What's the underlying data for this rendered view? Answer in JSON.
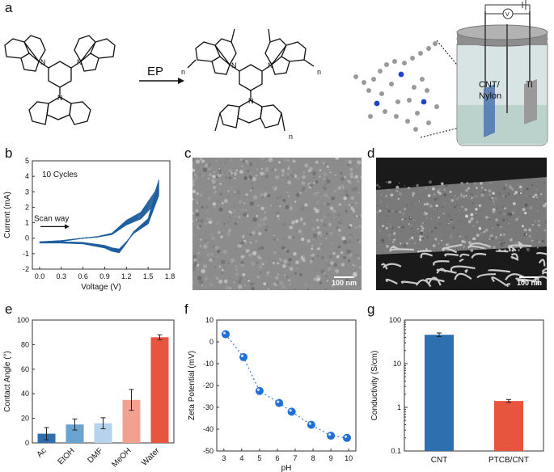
{
  "panels": {
    "a": "a",
    "b": "b",
    "c": "c",
    "d": "d",
    "e": "e",
    "f": "f",
    "g": "g"
  },
  "scheme": {
    "arrow_label": "EP",
    "cell_labels": [
      "CNT/",
      "Nylon",
      "Ti"
    ],
    "meter_label": "V",
    "repeat_n": "n"
  },
  "sem": {
    "c_scale": "100 nm",
    "d_scale": "100 nm"
  },
  "chart_data": [
    {
      "id": "b",
      "type": "line",
      "title": "",
      "annotation": "10 Cycles",
      "arrow_text": "Scan way",
      "xlabel": "Voltage (V)",
      "ylabel": "Current (mA)",
      "xlim": [
        -0.1,
        1.8
      ],
      "ylim": [
        -2,
        5
      ],
      "xticks": [
        "0.0",
        "0.3",
        "0.6",
        "0.9",
        "1.2",
        "1.5",
        "1.8"
      ],
      "yticks": [
        "-2",
        "-1",
        "0",
        "1",
        "2",
        "3",
        "4",
        "5"
      ],
      "cycles": 10,
      "color": "#1f5f9e",
      "series": [
        {
          "x": [
            0.0,
            0.3,
            0.6,
            0.8,
            1.0,
            1.2,
            1.4,
            1.6,
            1.65,
            1.5,
            1.3,
            1.2,
            1.1,
            1.0,
            0.9,
            0.6,
            0.3,
            0.0
          ],
          "y": [
            -0.3,
            -0.2,
            0.0,
            0.1,
            0.3,
            1.1,
            1.6,
            2.9,
            3.6,
            1.2,
            0.4,
            -0.3,
            -0.9,
            -0.8,
            -0.6,
            -0.35,
            -0.3,
            -0.3
          ]
        }
      ]
    },
    {
      "id": "e",
      "type": "bar",
      "title": "",
      "xlabel": "",
      "ylabel": "Contact Angle (°)",
      "ylim": [
        0,
        100
      ],
      "yticks": [
        "0",
        "20",
        "40",
        "60",
        "80",
        "100"
      ],
      "categories": [
        "Ac",
        "EtOH",
        "DMF",
        "MeOH",
        "Water"
      ],
      "values": [
        7.5,
        15,
        16,
        35,
        86
      ],
      "errors": [
        5,
        4.5,
        4.5,
        8.5,
        2
      ],
      "colors": [
        "#2e6fb0",
        "#6aa3d0",
        "#b6d2ec",
        "#f2a090",
        "#e8553f"
      ]
    },
    {
      "id": "f",
      "type": "scatter",
      "title": "",
      "xlabel": "pH",
      "ylabel": "Zeta Potential (mV)",
      "xlim": [
        2.6,
        10.4
      ],
      "ylim": [
        -50,
        10
      ],
      "xticks": [
        "3",
        "4",
        "5",
        "6",
        "7",
        "8",
        "9",
        "10"
      ],
      "yticks": [
        "-50",
        "-40",
        "-30",
        "-20",
        "-10",
        "0",
        "10"
      ],
      "x": [
        3.1,
        4.1,
        5.0,
        6.1,
        6.8,
        7.9,
        9.0,
        9.9
      ],
      "y": [
        3.5,
        -7,
        -22.5,
        -28,
        -32,
        -38,
        -43,
        -44
      ],
      "color": "#1f6fd6"
    },
    {
      "id": "g",
      "type": "bar",
      "title": "",
      "xlabel": "",
      "ylabel": "Conductivity (S/cm)",
      "yscale": "log",
      "ylim": [
        0.1,
        100
      ],
      "yticks": [
        "0.1",
        "1",
        "10",
        "100"
      ],
      "categories": [
        "CNT",
        "PTCB/CNT"
      ],
      "values": [
        46,
        1.4
      ],
      "errors_factor": [
        1.1,
        1.08
      ],
      "colors": [
        "#2e6fb0",
        "#e8553f"
      ]
    }
  ]
}
